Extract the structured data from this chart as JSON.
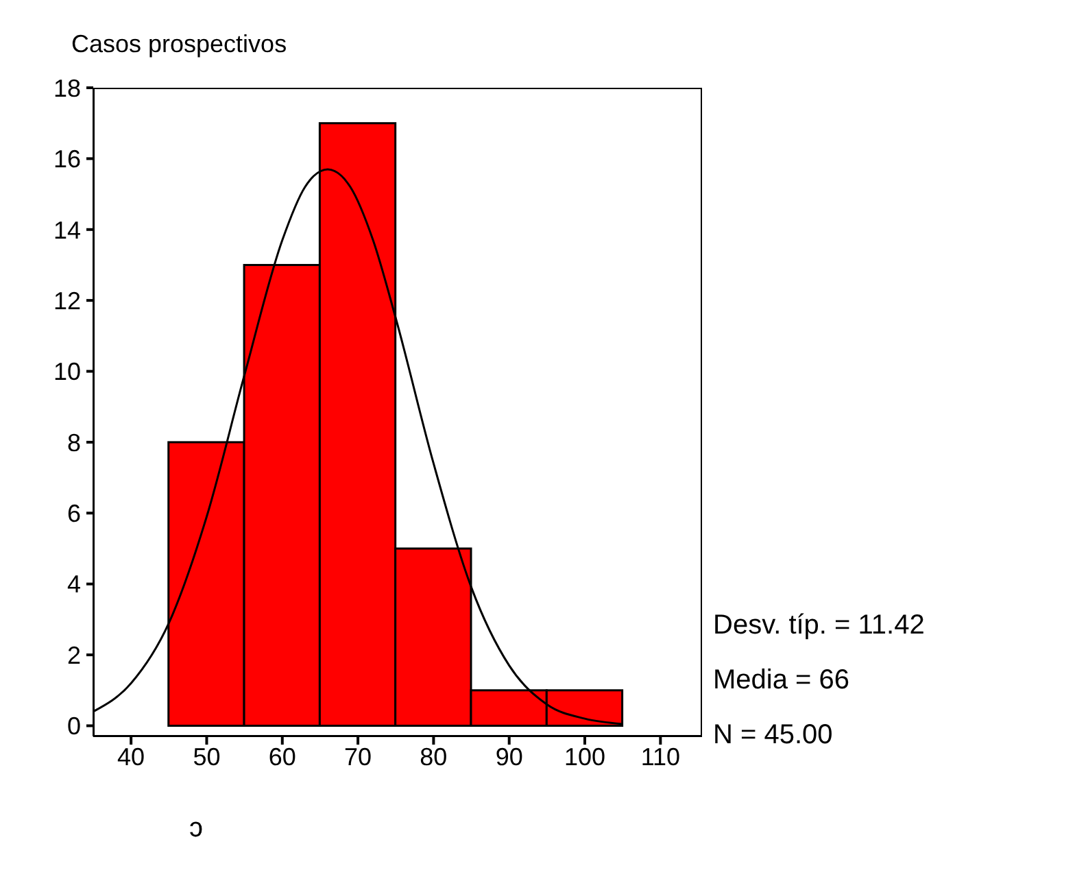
{
  "chart_data": {
    "type": "histogram",
    "title": "Casos prospectivos",
    "bins": [
      45,
      55,
      65,
      75,
      85,
      95,
      105
    ],
    "values": [
      8,
      13,
      17,
      5,
      1,
      1
    ],
    "color": "#ff0000",
    "series": [
      {
        "type": "line",
        "color": "#000000",
        "x": [
          35,
          40,
          45,
          50,
          55,
          60,
          63,
          66,
          69,
          72,
          75,
          80,
          85,
          90,
          95,
          100,
          105
        ],
        "values": [
          0.4,
          1.2,
          2.9,
          5.9,
          9.9,
          13.7,
          15.2,
          15.7,
          15.2,
          13.7,
          11.5,
          7.4,
          3.9,
          1.7,
          0.6,
          0.2,
          0.05
        ]
      }
    ],
    "marker": "none",
    "xlim": [
      35,
      115.5
    ],
    "xticks": [
      40,
      50,
      60,
      70,
      80,
      90,
      100,
      110
    ],
    "ylim": [
      -0.3,
      18
    ],
    "yticks": [
      0,
      2,
      4,
      6,
      8,
      10,
      12,
      14,
      16,
      18
    ],
    "annotations": [
      "Desv. típ. = 11.42",
      "Media = 66",
      "N = 45.00",
      "ɔ"
    ]
  }
}
